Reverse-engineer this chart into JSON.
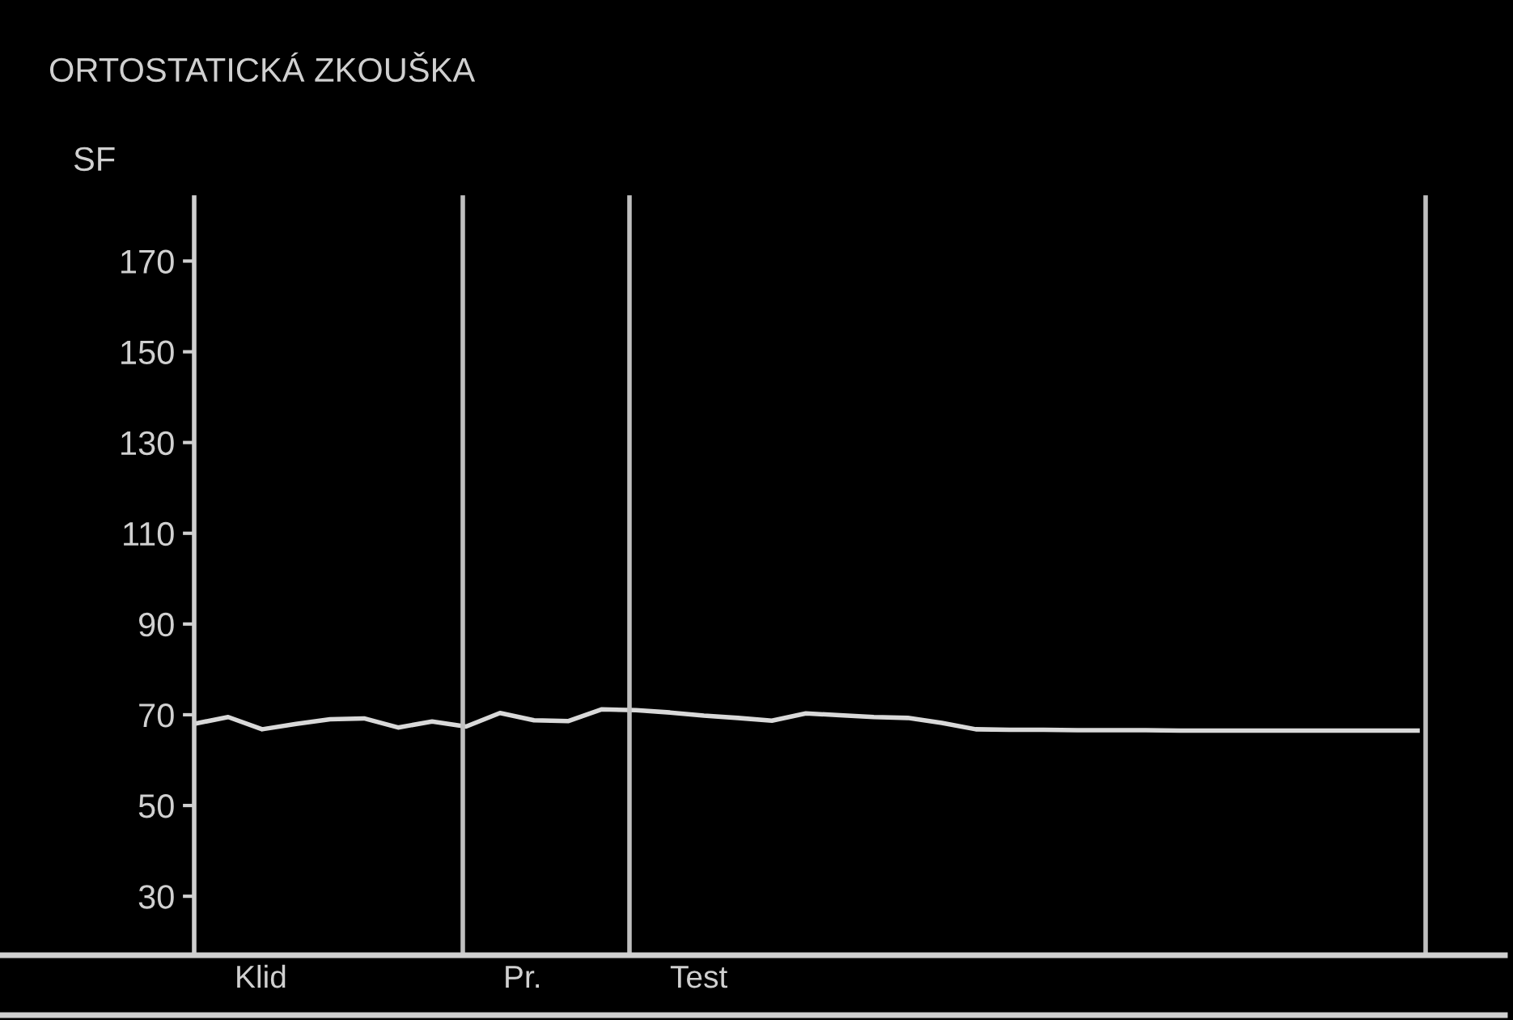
{
  "chart_data": {
    "type": "line",
    "title": "ORTOSTATICKÁ ZKOUŠKA",
    "ylabel": "SF",
    "categories": [
      null,
      null,
      null,
      null,
      null,
      null,
      null,
      null,
      null,
      null,
      null,
      null,
      null,
      null,
      null,
      null,
      null,
      null,
      null,
      null,
      null,
      null,
      null,
      null,
      null,
      null,
      null,
      null,
      null,
      null,
      null,
      null,
      null,
      null,
      null,
      null,
      null
    ],
    "series": [
      {
        "color": "#d9d9d9",
        "values": [
          68.0,
          69.5,
          66.8,
          68.0,
          69.0,
          69.2,
          67.2,
          68.5,
          67.4,
          70.4,
          68.8,
          68.6,
          71.2,
          71.0,
          70.5,
          69.8,
          69.3,
          68.7,
          70.3,
          69.9,
          69.5,
          69.3,
          68.2,
          66.8,
          66.7,
          66.7,
          66.6,
          66.6,
          66.6,
          66.5,
          66.5,
          66.5,
          66.5,
          66.5,
          66.5,
          66.5,
          66.5
        ]
      }
    ],
    "ylim": [
      17,
      184
    ],
    "yticks": [
      30,
      50,
      70,
      90,
      110,
      130,
      150,
      170
    ],
    "annotations": [
      "Klid",
      "Pr.",
      "Test"
    ],
    "grid": false,
    "legend": false,
    "marker": "none",
    "line_style": "solid",
    "tick_labels": "y"
  }
}
